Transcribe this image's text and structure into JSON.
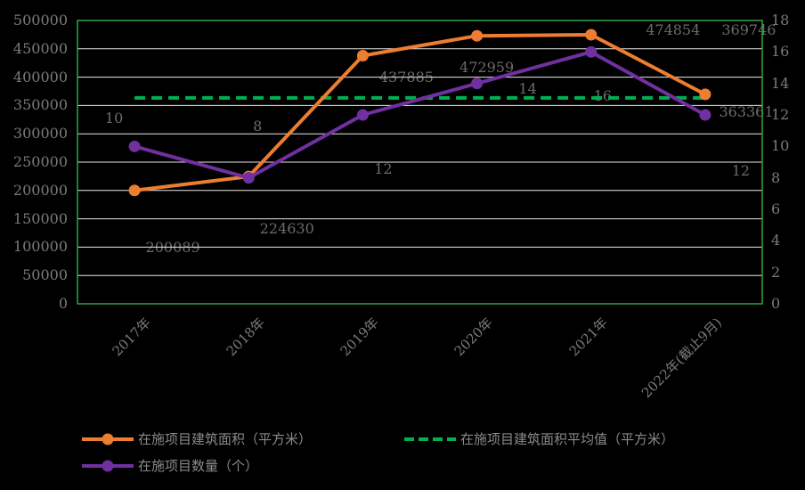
{
  "style": {
    "background": "#000000",
    "plot_border_color": "#2EA44A",
    "gridline_color": "#EAEAEA",
    "axis_text_color": "#7A7A7A",
    "data_label_color": "#6B6B6B",
    "legend_text_color": "#8A8A8A",
    "series_orange": "#ED7D31",
    "series_purple": "#7030A0",
    "series_green": "#00B050"
  },
  "chart_data": {
    "type": "line",
    "title": "",
    "categories": [
      "2017年",
      "2018年",
      "2019年",
      "2020年",
      "2021年",
      "2022年(截止9月)"
    ],
    "left_axis": {
      "min": 0,
      "max": 500000,
      "step": 50000,
      "labels": [
        "0",
        "50000",
        "100000",
        "150000",
        "200000",
        "250000",
        "300000",
        "350000",
        "400000",
        "450000",
        "500000"
      ]
    },
    "right_axis": {
      "min": 0,
      "max": 18,
      "step": 2,
      "labels": [
        "0",
        "2",
        "4",
        "6",
        "8",
        "10",
        "12",
        "14",
        "16",
        "18"
      ]
    },
    "grid": "horizontal",
    "legend_position": "bottom-left",
    "series": [
      {
        "name": "在施项目建筑面积（平方米）",
        "type": "line",
        "axis": "left",
        "color_key": "series_orange",
        "marker": "circle",
        "values": [
          200089,
          224630,
          437885,
          472959,
          474854,
          369746
        ],
        "data_labels": [
          "200089",
          "224630",
          "437885",
          "472959",
          "474854",
          "369746"
        ],
        "label_offsets": [
          [
            43,
            64
          ],
          [
            43,
            59
          ],
          [
            49,
            24
          ],
          [
            11,
            36
          ],
          [
            92,
            -5
          ],
          [
            49,
            -72
          ]
        ]
      },
      {
        "name": "在施项目数量（个）",
        "type": "line",
        "axis": "right",
        "color_key": "series_purple",
        "marker": "circle",
        "values": [
          10,
          8,
          12,
          14,
          16,
          12
        ],
        "data_labels": [
          "10",
          "8",
          "12",
          "14",
          "16",
          "12"
        ],
        "label_offsets": [
          [
            -23,
            -31
          ],
          [
            10,
            -58
          ],
          [
            23,
            61
          ],
          [
            57,
            6
          ],
          [
            13,
            50
          ],
          [
            40,
            63
          ]
        ]
      },
      {
        "name": "在施项目建筑面积平均值（平方米）",
        "type": "average_line",
        "axis": "left",
        "color_key": "series_green",
        "dashed": true,
        "value": 363360.5,
        "data_label": "363361",
        "label_pos": [
          838,
          126
        ]
      }
    ]
  }
}
